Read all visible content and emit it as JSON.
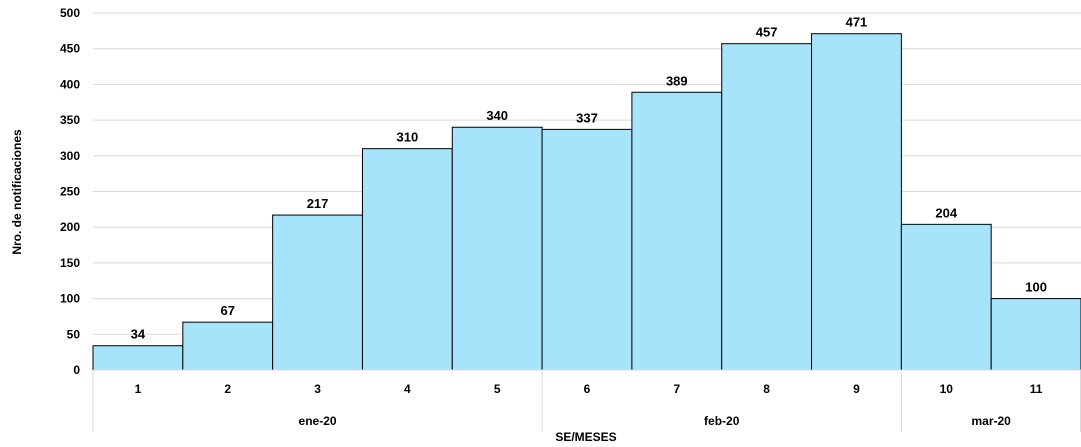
{
  "chart_data": {
    "type": "bar",
    "categories": [
      "1",
      "2",
      "3",
      "4",
      "5",
      "6",
      "7",
      "8",
      "9",
      "10",
      "11"
    ],
    "values": [
      34,
      67,
      217,
      310,
      340,
      337,
      389,
      457,
      471,
      204,
      100
    ],
    "month_groups": [
      {
        "label": "ene-20",
        "count": 5
      },
      {
        "label": "feb-20",
        "count": 4
      },
      {
        "label": "mar-20",
        "count": 2
      }
    ],
    "xlabel": "SE/MESES",
    "ylabel": "Nro. de notificaciones",
    "ylim": [
      0,
      500
    ],
    "yticks": [
      0,
      50,
      100,
      150,
      200,
      250,
      300,
      350,
      400,
      450,
      500
    ],
    "grid": true,
    "bar_color": "#A6E4FC",
    "bar_edge_color": "#000000",
    "grid_color": "#D9D9D9"
  }
}
